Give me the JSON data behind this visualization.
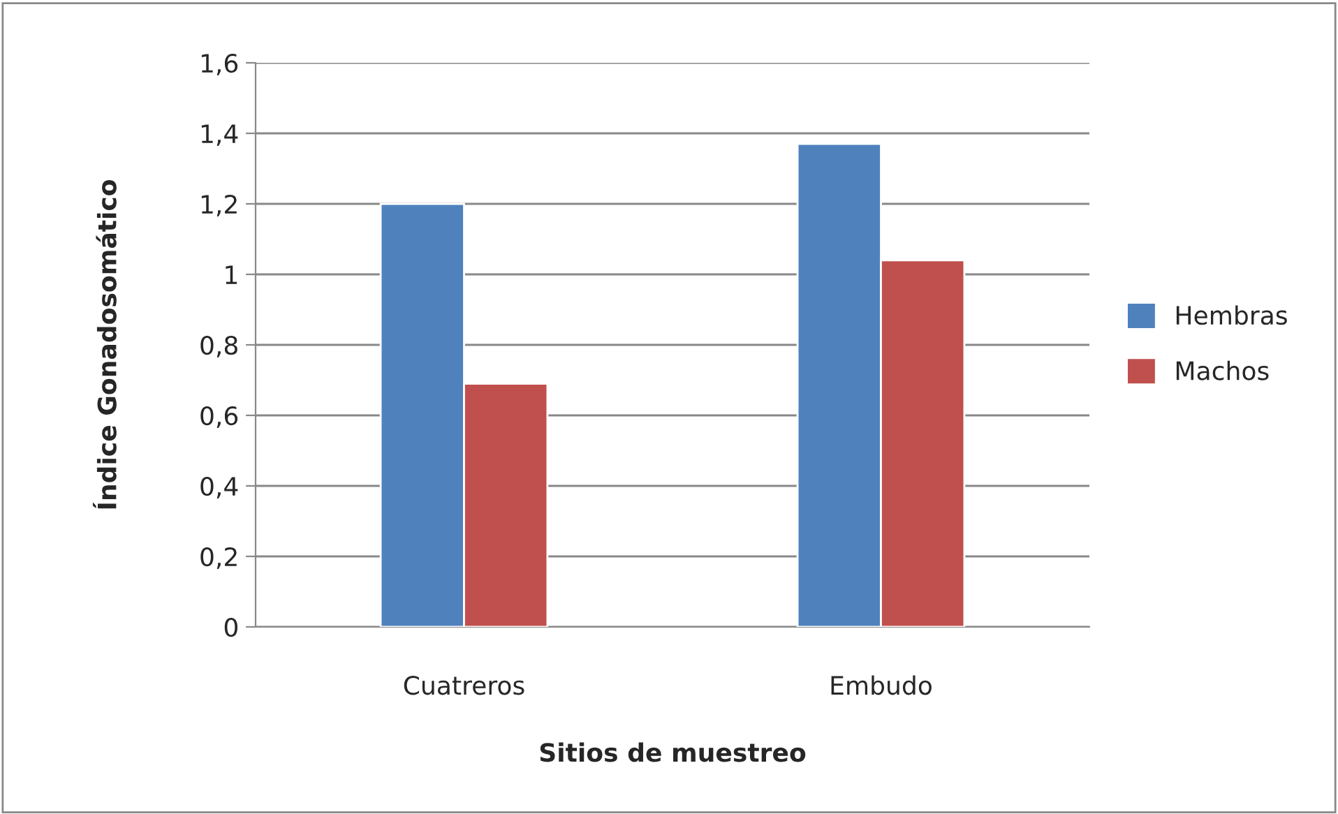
{
  "chart_data": {
    "type": "bar",
    "xlabel": "Sitios de muestreo",
    "ylabel": "Índice Gonadosomático",
    "categories": [
      "Cuatreros",
      "Embudo"
    ],
    "series": [
      {
        "name": "Hembras",
        "color": "#4f81bd",
        "values": [
          1.2,
          1.37
        ]
      },
      {
        "name": "Machos",
        "color": "#c0504d",
        "values": [
          0.69,
          1.04
        ]
      }
    ],
    "ylim": [
      0,
      1.6
    ],
    "yticks": [
      0,
      {
        "value": 0.2,
        "label": "0,2"
      },
      {
        "value": 0.4,
        "label": "0,4"
      },
      {
        "value": 0.6,
        "label": "0,6"
      },
      {
        "value": 0.8,
        "label": "0,8"
      },
      1,
      {
        "value": 1.2,
        "label": "1,2"
      },
      {
        "value": 1.4,
        "label": "1,4"
      },
      {
        "value": 1.6,
        "label": "1,6"
      }
    ],
    "grid": "y",
    "legend": "right"
  }
}
